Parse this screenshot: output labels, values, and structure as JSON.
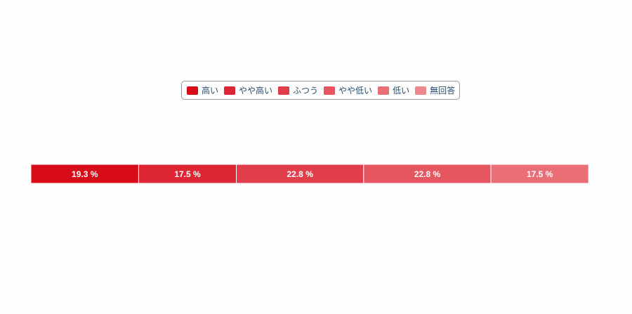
{
  "chart_data": {
    "type": "bar",
    "orientation": "horizontal-stacked-percent",
    "categories": [
      ""
    ],
    "series": [
      {
        "name": "高い",
        "values": [
          19.3
        ],
        "color": "#d80c18"
      },
      {
        "name": "やや高い",
        "values": [
          17.5
        ],
        "color": "#dd2533"
      },
      {
        "name": "ふつう",
        "values": [
          22.8
        ],
        "color": "#e03e4a"
      },
      {
        "name": "やや低い",
        "values": [
          22.8
        ],
        "color": "#e55660"
      },
      {
        "name": "低い",
        "values": [
          17.5
        ],
        "color": "#e96e76"
      },
      {
        "name": "無回答",
        "values": [
          0
        ],
        "color": "#ee878d"
      }
    ],
    "data_label_suffix": " %",
    "xlim": [
      0,
      100
    ],
    "grid": false,
    "legend_position": "top-center"
  }
}
